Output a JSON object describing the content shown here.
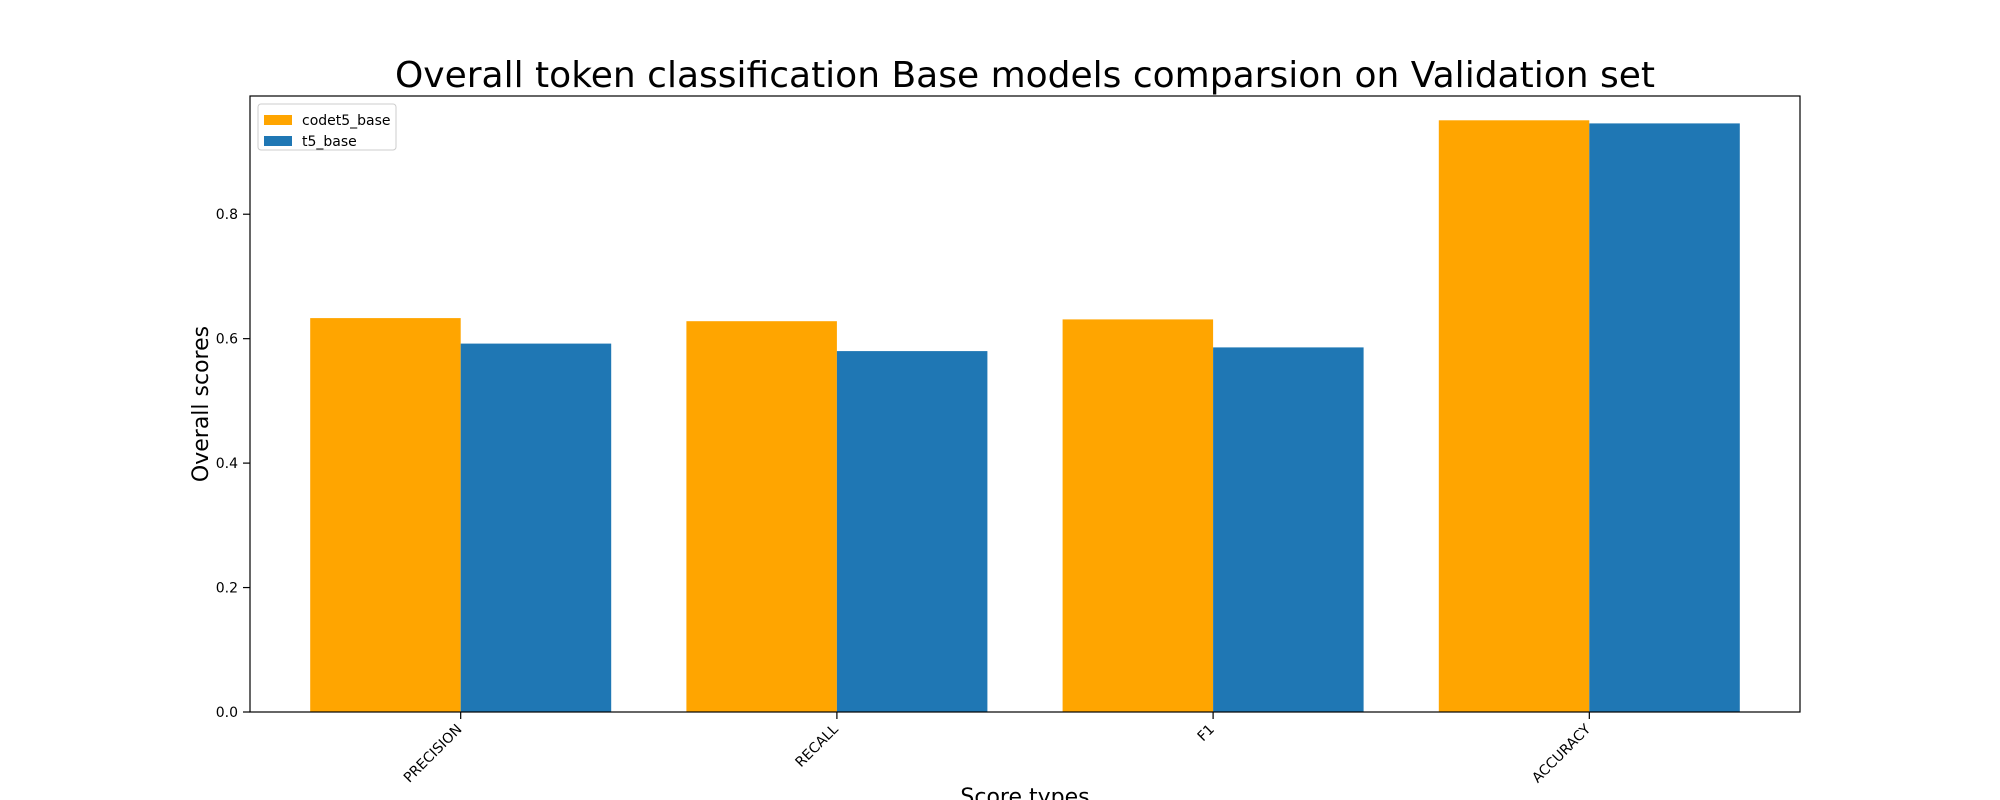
{
  "chart_data": {
    "type": "bar",
    "title": "Overall token classification Base models comparsion on Validation set",
    "xlabel": "Score types",
    "ylabel": "Overall scores",
    "categories": [
      "PRECISION",
      "RECALL",
      "F1",
      "ACCURACY"
    ],
    "series": [
      {
        "name": "codet5_base",
        "color": "#FFA500",
        "values": [
          0.633,
          0.628,
          0.631,
          0.951
        ]
      },
      {
        "name": "t5_base",
        "color": "#1F77B4",
        "values": [
          0.592,
          0.58,
          0.586,
          0.946
        ]
      }
    ],
    "ylim": [
      0,
      0.99
    ],
    "yticks": [
      0.0,
      0.2,
      0.4,
      0.6,
      0.8
    ],
    "ytick_labels": [
      "0.0",
      "0.2",
      "0.4",
      "0.6",
      "0.8"
    ],
    "grid": false,
    "legend_position": "top-left",
    "xtick_rotation": "45deg"
  }
}
